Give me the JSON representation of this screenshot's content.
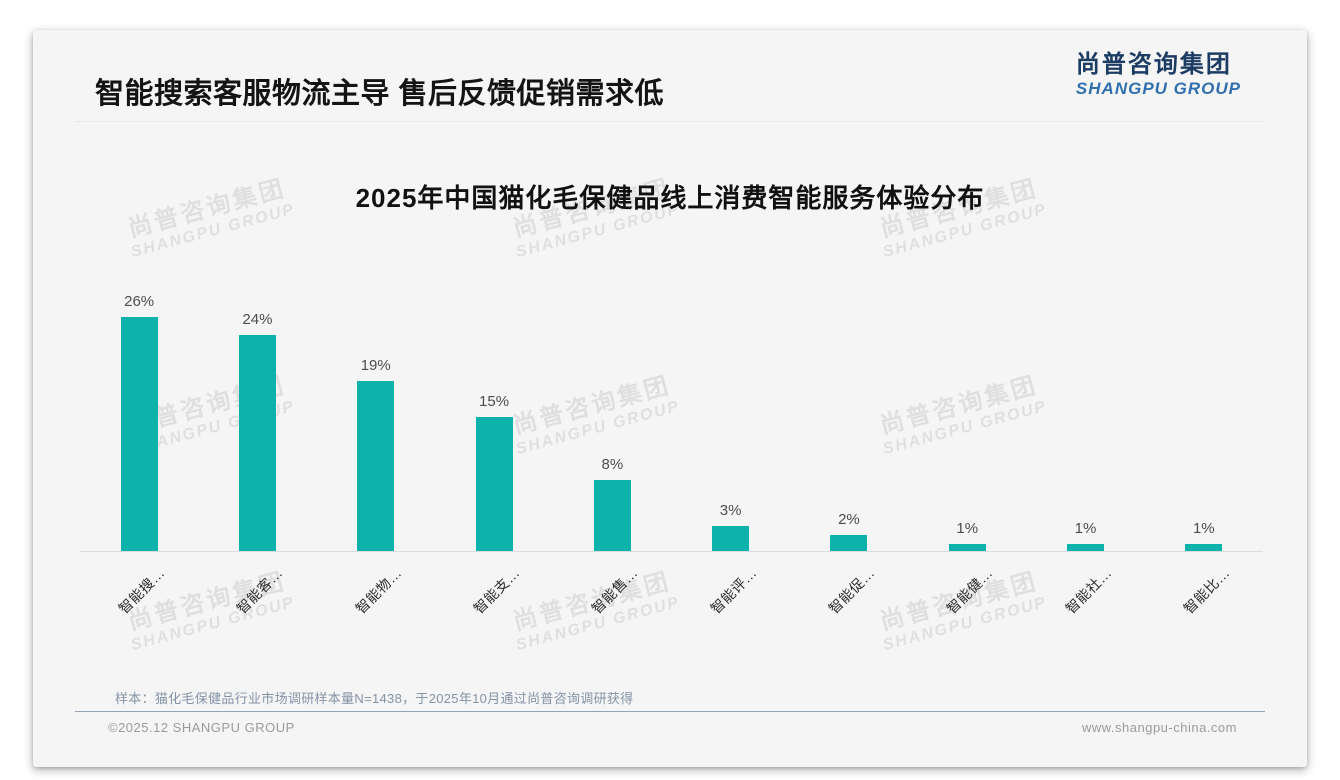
{
  "page": {
    "main_title": "智能搜索客服物流主导 售后反馈促销需求低",
    "logo": {
      "cn": "尚普咨询集团",
      "en": "SHANGPU GROUP"
    },
    "watermark": {
      "cn": "尚普咨询集团",
      "en": "SHANGPU GROUP"
    },
    "footnote": "样本：猫化毛保健品行业市场调研样本量N=1438，于2025年10月通过尚普咨询调研获得",
    "footer": {
      "left": "©2025.12 SHANGPU GROUP",
      "right": "www.shangpu-china.com"
    }
  },
  "chart_data": {
    "type": "bar",
    "title": "2025年中国猫化毛保健品线上消费智能服务体验分布",
    "categories": [
      "智能搜…",
      "智能客…",
      "智能物…",
      "智能支…",
      "智能售…",
      "智能评…",
      "智能促…",
      "智能健…",
      "智能社…",
      "智能比…"
    ],
    "values": [
      26,
      24,
      19,
      15,
      8,
      3,
      2,
      1,
      1,
      1
    ],
    "value_labels": [
      "26%",
      "24%",
      "19%",
      "15%",
      "8%",
      "3%",
      "2%",
      "1%",
      "1%",
      "1%"
    ],
    "bar_color": "#0db2aa",
    "xlabel": "",
    "ylabel": "",
    "ylim": [
      0,
      28
    ],
    "grid": false,
    "legend": false,
    "x_label_rotation_deg": 45
  }
}
